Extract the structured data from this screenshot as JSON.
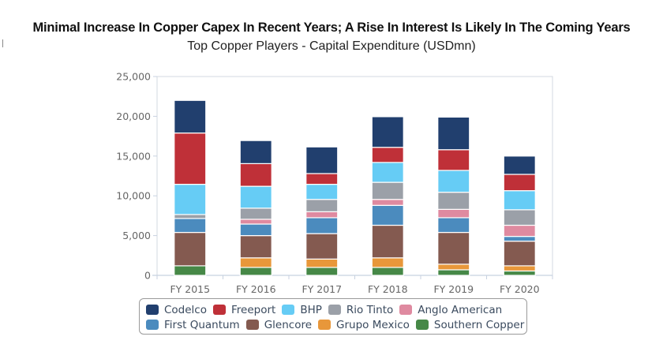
{
  "header": {
    "title": "Minimal Increase In Copper Capex In Recent Years; A Rise In Interest Is Likely In The Coming Years",
    "subtitle": "Top Copper Players - Capital Expenditure (USDmn)"
  },
  "chart_data": {
    "type": "bar",
    "stacked": true,
    "title": "Minimal Increase In Copper Capex In Recent Years; A Rise In Interest Is Likely In The Coming Years",
    "subtitle": "Top Copper Players - Capital Expenditure (USDmn)",
    "xlabel": "",
    "ylabel": "",
    "ylim": [
      0,
      25000
    ],
    "yticks": [
      0,
      5000,
      10000,
      15000,
      20000,
      25000
    ],
    "ytick_labels": [
      "0",
      "5,000",
      "10,000",
      "15,000",
      "20,000",
      "25,000"
    ],
    "grid": false,
    "legend_position": "bottom",
    "categories": [
      "FY 2015",
      "FY 2016",
      "FY 2017",
      "FY 2018",
      "FY 2019",
      "FY 2020"
    ],
    "series": [
      {
        "name": "Southern Copper",
        "color": "#468847",
        "values": [
          1200,
          1000,
          1000,
          1000,
          700,
          550
        ]
      },
      {
        "name": "Grupo Mexico",
        "color": "#e8973a",
        "values": [
          0,
          1200,
          1050,
          1200,
          700,
          650
        ]
      },
      {
        "name": "Glencore",
        "color": "#845a50",
        "values": [
          4200,
          2800,
          3200,
          4100,
          4000,
          3100
        ]
      },
      {
        "name": "First Quantum",
        "color": "#4b8bbe",
        "values": [
          1750,
          1450,
          2000,
          2500,
          1850,
          600
        ]
      },
      {
        "name": "Anglo American",
        "color": "#df8aa0",
        "values": [
          0,
          600,
          750,
          750,
          1050,
          1400
        ]
      },
      {
        "name": "Rio Tinto",
        "color": "#9ba0a8",
        "values": [
          500,
          1400,
          1550,
          2150,
          2150,
          1950
        ]
      },
      {
        "name": "BHP",
        "color": "#66ccf5",
        "values": [
          3800,
          2750,
          1900,
          2500,
          2750,
          2400
        ]
      },
      {
        "name": "Freeport",
        "color": "#bf3038",
        "values": [
          6450,
          2850,
          1350,
          1900,
          2600,
          2050
        ]
      },
      {
        "name": "Codelco",
        "color": "#213f6e",
        "values": [
          4100,
          2900,
          3350,
          3850,
          4100,
          2300
        ]
      }
    ],
    "legend_order": [
      [
        "Codelco",
        "Freeport",
        "BHP",
        "Rio Tinto",
        "Anglo American"
      ],
      [
        "First Quantum",
        "Glencore",
        "Grupo Mexico",
        "Southern Copper"
      ]
    ]
  }
}
